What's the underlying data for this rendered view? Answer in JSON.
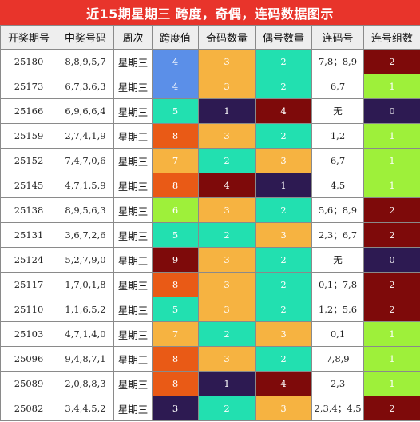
{
  "title": "近15期星期三 跨度，奇偶，连码数据图示",
  "columns": [
    "开奖期号",
    "中奖号码",
    "周次",
    "跨度值",
    "奇码数量",
    "偶号数量",
    "连码号",
    "连号组数"
  ],
  "colors": {
    "title_bg": "#e8342b",
    "header_bg": "#eeeeee",
    "span": {
      "3": "#2d1a52",
      "4": "#5b8fe8",
      "5": "#22e0b0",
      "6": "#9ef03a",
      "7": "#f6b341",
      "8": "#e95a16",
      "9": "#7e0a0a"
    },
    "count": {
      "1": "#2d1a52",
      "2": "#22e0b0",
      "3": "#f6b341",
      "4": "#7e0a0a"
    },
    "groups": {
      "0": "#2d1a52",
      "1": "#9ef03a",
      "2": "#7e0a0a"
    }
  },
  "rows": [
    {
      "issue": "25180",
      "numbers": "8,8,9,5,7",
      "weekday": "星期三",
      "span": "4",
      "odd": "3",
      "even": "2",
      "consec": "7,8；8,9",
      "groups": "2"
    },
    {
      "issue": "25173",
      "numbers": "6,7,3,6,3",
      "weekday": "星期三",
      "span": "4",
      "odd": "3",
      "even": "2",
      "consec": "6,7",
      "groups": "1"
    },
    {
      "issue": "25166",
      "numbers": "6,9,6,6,4",
      "weekday": "星期三",
      "span": "5",
      "odd": "1",
      "even": "4",
      "consec": "无",
      "groups": "0"
    },
    {
      "issue": "25159",
      "numbers": "2,7,4,1,9",
      "weekday": "星期三",
      "span": "8",
      "odd": "3",
      "even": "2",
      "consec": "1,2",
      "groups": "1"
    },
    {
      "issue": "25152",
      "numbers": "7,4,7,0,6",
      "weekday": "星期三",
      "span": "7",
      "odd": "2",
      "even": "3",
      "consec": "6,7",
      "groups": "1"
    },
    {
      "issue": "25145",
      "numbers": "4,7,1,5,9",
      "weekday": "星期三",
      "span": "8",
      "odd": "4",
      "even": "1",
      "consec": "4,5",
      "groups": "1"
    },
    {
      "issue": "25138",
      "numbers": "8,9,5,6,3",
      "weekday": "星期三",
      "span": "6",
      "odd": "3",
      "even": "2",
      "consec": "5,6；8,9",
      "groups": "2"
    },
    {
      "issue": "25131",
      "numbers": "3,6,7,2,6",
      "weekday": "星期三",
      "span": "5",
      "odd": "2",
      "even": "3",
      "consec": "2,3；6,7",
      "groups": "2"
    },
    {
      "issue": "25124",
      "numbers": "5,2,7,9,0",
      "weekday": "星期三",
      "span": "9",
      "odd": "3",
      "even": "2",
      "consec": "无",
      "groups": "0"
    },
    {
      "issue": "25117",
      "numbers": "1,7,0,1,8",
      "weekday": "星期三",
      "span": "8",
      "odd": "3",
      "even": "2",
      "consec": "0,1；7,8",
      "groups": "2"
    },
    {
      "issue": "25110",
      "numbers": "1,1,6,5,2",
      "weekday": "星期三",
      "span": "5",
      "odd": "3",
      "even": "2",
      "consec": "1,2；5,6",
      "groups": "2"
    },
    {
      "issue": "25103",
      "numbers": "4,7,1,4,0",
      "weekday": "星期三",
      "span": "7",
      "odd": "2",
      "even": "3",
      "consec": "0,1",
      "groups": "1"
    },
    {
      "issue": "25096",
      "numbers": "9,4,8,7,1",
      "weekday": "星期三",
      "span": "8",
      "odd": "3",
      "even": "2",
      "consec": "7,8,9",
      "groups": "1"
    },
    {
      "issue": "25089",
      "numbers": "2,0,8,8,3",
      "weekday": "星期三",
      "span": "8",
      "odd": "1",
      "even": "4",
      "consec": "2,3",
      "groups": "1"
    },
    {
      "issue": "25082",
      "numbers": "3,4,4,5,2",
      "weekday": "星期三",
      "span": "3",
      "odd": "2",
      "even": "3",
      "consec": "2,3,4；4,5",
      "groups": "2"
    }
  ]
}
